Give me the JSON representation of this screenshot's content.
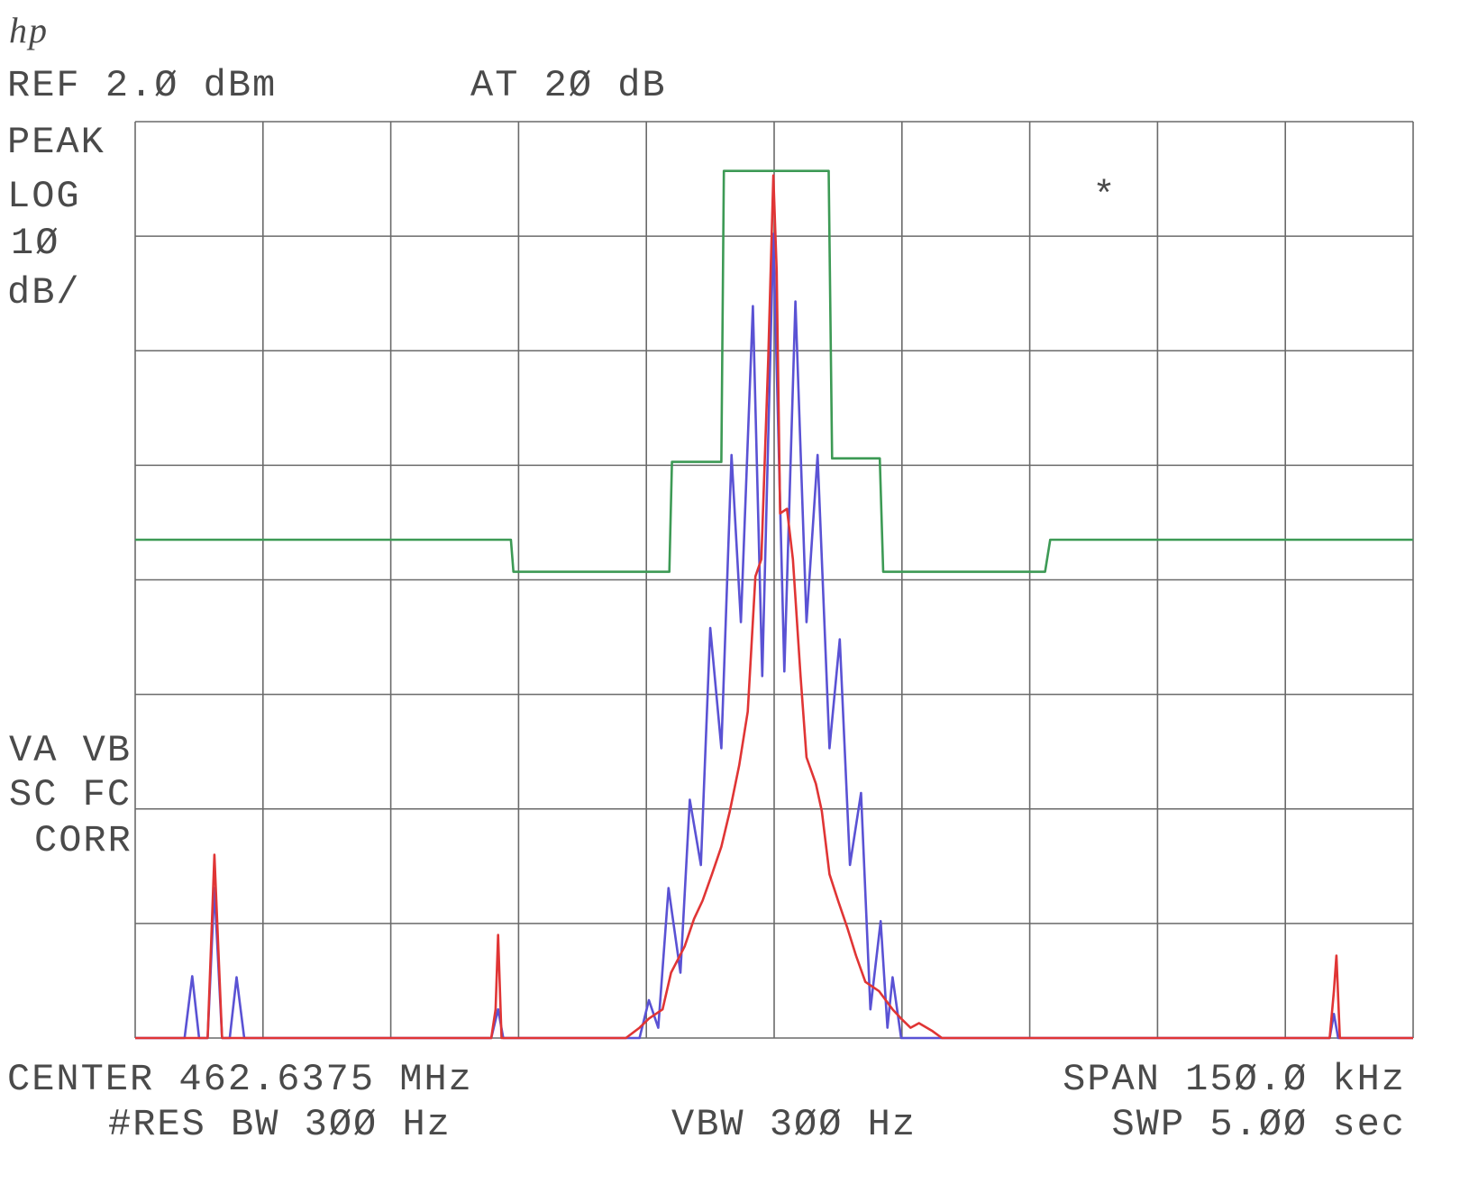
{
  "chart_data": {
    "type": "line",
    "logo": "hp",
    "annotations": [
      "REF 2.Ø dBm",
      "AT 2Ø dB",
      "PEAK",
      "LOG",
      "1Ø",
      "dB/",
      "VA VB",
      "SC FC",
      "CORR",
      "*",
      "CENTER 462.6375 MHz",
      "SPAN 15Ø.Ø kHz",
      "#RES BW 3ØØ Hz",
      "VBW 3ØØ Hz",
      "SWP 5.ØØ sec"
    ],
    "xlim": [
      -75,
      75
    ],
    "xticks": [
      -75,
      -60,
      -45,
      -30,
      -15,
      0,
      15,
      30,
      45,
      60,
      75
    ],
    "ylim": [
      -78,
      2
    ],
    "yticks": [
      -78,
      -68,
      -58,
      -48,
      -38,
      -28,
      -18,
      -8,
      2
    ],
    "grid": true,
    "series": [
      {
        "name": "mask",
        "color": "#3d9a55",
        "x": [
          -75,
          -30.9,
          -30.6,
          -12.3,
          -12.0,
          -6.2,
          -5.9,
          6.4,
          6.8,
          12.4,
          12.8,
          31.8,
          32.4,
          75
        ],
        "values": [
          -34.5,
          -34.5,
          -37.3,
          -37.3,
          -27.7,
          -27.7,
          -2.3,
          -2.3,
          -27.4,
          -27.4,
          -37.3,
          -37.3,
          -34.5,
          -34.5
        ]
      },
      {
        "name": "trace-b",
        "color": "#5a52d4",
        "x": [
          -75,
          -69.2,
          -68.3,
          -67.5,
          -66.5,
          -65.7,
          -64.8,
          -63.9,
          -63.1,
          -62.2,
          -33.2,
          -32.4,
          -31.8,
          -15.8,
          -14.7,
          -13.6,
          -12.4,
          -11.0,
          -9.9,
          -8.6,
          -7.5,
          -6.2,
          -5.0,
          -3.9,
          -2.5,
          -1.4,
          -0.1,
          1.2,
          2.5,
          3.8,
          5.1,
          6.5,
          7.7,
          8.9,
          10.2,
          11.3,
          12.5,
          13.3,
          13.9,
          14.9,
          65.2,
          65.7,
          66.2,
          75
        ],
        "values": [
          -78,
          -78,
          -72.6,
          -78,
          -78,
          -64.9,
          -78,
          -78,
          -72.7,
          -78,
          -78,
          -75.5,
          -78,
          -78,
          -74.7,
          -77.1,
          -64.9,
          -72.3,
          -57.2,
          -62.9,
          -42.2,
          -52.7,
          -27.1,
          -41.7,
          -14.1,
          -46.4,
          -7.8,
          -46.0,
          -13.7,
          -41.7,
          -27.1,
          -52.7,
          -43.2,
          -62.9,
          -56.6,
          -75.5,
          -67.8,
          -77.1,
          -72.7,
          -78,
          -78,
          -75.9,
          -78,
          -78
        ]
      },
      {
        "name": "trace-a",
        "color": "#e03535",
        "x": [
          -75,
          -66.5,
          -65.7,
          -64.8,
          -33.2,
          -32.7,
          -32.4,
          -32.0,
          -17.4,
          -15.8,
          -14.7,
          -13.1,
          -12.1,
          -10.5,
          -9.4,
          -8.4,
          -7.3,
          -6.2,
          -5.2,
          -4.1,
          -3.1,
          -2.2,
          -1.5,
          -0.7,
          -0.1,
          0.3,
          0.7,
          1.5,
          2.2,
          3.1,
          3.8,
          4.9,
          5.6,
          6.5,
          7.5,
          8.6,
          9.6,
          10.7,
          12.3,
          13.9,
          14.9,
          16.0,
          17.0,
          18.6,
          19.7,
          65.2,
          65.7,
          66.0,
          66.4,
          75
        ],
        "values": [
          -78,
          -78,
          -62.0,
          -78,
          -78,
          -75.5,
          -69.0,
          -78,
          -78,
          -77.1,
          -76.3,
          -75.5,
          -72.3,
          -70.0,
          -67.6,
          -66.0,
          -63.7,
          -61.3,
          -58.2,
          -54.2,
          -49.5,
          -37.7,
          -36.2,
          -18.8,
          -2.7,
          -11.0,
          -32.2,
          -31.8,
          -36.2,
          -46.4,
          -53.5,
          -55.8,
          -58.2,
          -63.7,
          -66.0,
          -68.4,
          -70.8,
          -73.1,
          -73.9,
          -75.5,
          -76.3,
          -77.1,
          -76.7,
          -77.4,
          -78,
          -78,
          -73.9,
          -70.8,
          -78,
          -78
        ]
      }
    ]
  }
}
